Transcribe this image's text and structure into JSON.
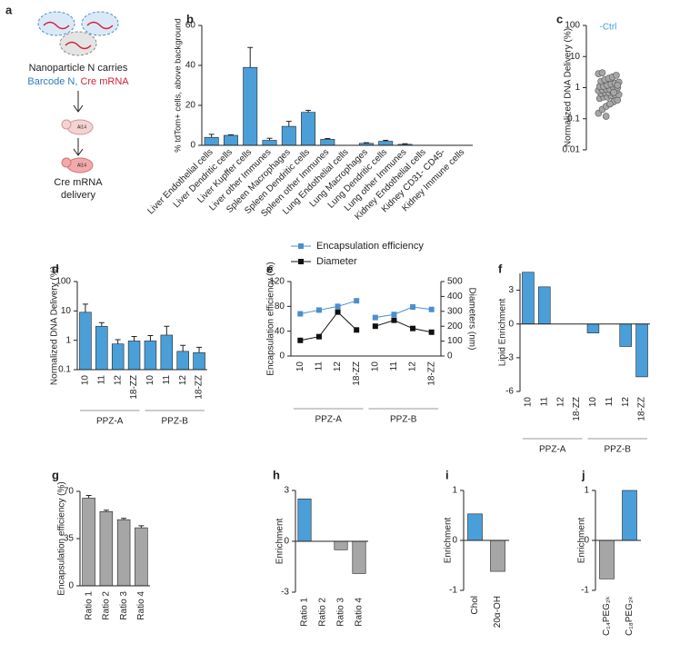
{
  "diagram": {
    "panel": "a",
    "caption": "Nanoparticle N carries",
    "barcode": "Barcode N,",
    "cargo": "Cre mRNA",
    "mouse_label": "Ai14",
    "result_1": "Cre mRNA",
    "result_2": "delivery"
  },
  "chart_data": [
    {
      "type": "bar",
      "panel": "b",
      "ylabel": "% tdTom+ cells, above background",
      "color": "#4a9fd8",
      "categories": [
        "Liver Endothelial cells",
        "Liver Dendritic cells",
        "Liver Kupffer cells",
        "Liver other Immunes",
        "Spleen Macrophages",
        "Spleen Dendritic cells",
        "Spleen other Immunes",
        "Lung Endothelial cells",
        "Lung Macrophages",
        "Lung Dendritic cells",
        "Lung other Immunes",
        "Kidney Endothelial cells",
        "Kidney CD31- CD45-",
        "Kidney Immune cells"
      ],
      "values": [
        4,
        5,
        39,
        2.5,
        9.5,
        16.5,
        3,
        0,
        1,
        2,
        0.5,
        0,
        0,
        0
      ],
      "errors": [
        1.5,
        0.3,
        10,
        1,
        2.5,
        1,
        0.4,
        0,
        0.3,
        0.5,
        0.3,
        0,
        0,
        0
      ],
      "ylim": [
        0,
        60
      ],
      "yticks": [
        0,
        20,
        40,
        60
      ]
    },
    {
      "type": "scatter",
      "panel": "c",
      "ylabel": "Normalized DNA Delivery (%)",
      "annotation": "-Ctrl",
      "annotation_color": "#4a9fd8",
      "color": "#a6a6a6",
      "log": true,
      "values": [
        0.15,
        0.2,
        0.25,
        0.3,
        0.35,
        0.4,
        0.45,
        0.5,
        0.5,
        0.55,
        0.6,
        0.6,
        0.65,
        0.7,
        0.7,
        0.75,
        0.8,
        0.8,
        0.85,
        0.9,
        0.9,
        1,
        1,
        1.1,
        1.1,
        1.2,
        1.3,
        1.4,
        1.5,
        1.6,
        1.8,
        2,
        2.2,
        2.5,
        2.8,
        3,
        0.12,
        0.3,
        0.7,
        1.2
      ],
      "ylim": [
        0.01,
        100
      ],
      "yticks": [
        0.01,
        0.1,
        1,
        10,
        100
      ]
    },
    {
      "type": "bar",
      "panel": "d",
      "ylabel": "Normalized DNA Delivery (%)",
      "color": "#4a9fd8",
      "log": true,
      "categories": [
        "10",
        "11",
        "12",
        "18-ZZ",
        "10",
        "11",
        "12",
        "18-ZZ"
      ],
      "groups": [
        "PPZ-A",
        "PPZ-B"
      ],
      "values": [
        9,
        3,
        0.75,
        0.95,
        0.95,
        1.5,
        0.42,
        0.38
      ],
      "errors": [
        8,
        1,
        0.3,
        0.4,
        0.5,
        1.5,
        0.25,
        0.2
      ],
      "ylim": [
        0.1,
        100
      ],
      "yticks": [
        0.1,
        1,
        10,
        100
      ]
    },
    {
      "type": "line",
      "panel": "e",
      "ylabel": "Encapsulation efficiency (%)",
      "y2label": "Diameters (nm)",
      "categories": [
        "10",
        "11",
        "12",
        "18-ZZ",
        "10",
        "11",
        "12",
        "18-ZZ"
      ],
      "groups": [
        "PPZ-A",
        "PPZ-B"
      ],
      "series": [
        {
          "name": "Encapsulation efficiency",
          "color": "#4a8fd0",
          "values": [
            68,
            74,
            80,
            89,
            62,
            67,
            79,
            75
          ]
        },
        {
          "name": "Diameter",
          "color": "#111111",
          "axis": "y2",
          "values": [
            105,
            130,
            295,
            175,
            200,
            240,
            185,
            160
          ]
        }
      ],
      "ylim": [
        0,
        120
      ],
      "yticks": [
        0,
        40,
        80,
        120
      ],
      "y2lim": [
        0,
        500
      ],
      "y2ticks": [
        0,
        100,
        200,
        300,
        400,
        500
      ]
    },
    {
      "type": "bar",
      "panel": "f",
      "ylabel": "Lipid Enrichment",
      "color": "#4a9fd8",
      "categories": [
        "10",
        "11",
        "12",
        "18-ZZ",
        "10",
        "11",
        "12",
        "18-ZZ"
      ],
      "groups": [
        "PPZ-A",
        "PPZ-B"
      ],
      "values": [
        4.6,
        3.3,
        0,
        0,
        -0.8,
        0,
        -2,
        -4.7
      ],
      "ylim": [
        -6,
        4.5
      ],
      "yticks": [
        -6,
        -3,
        0,
        3
      ]
    },
    {
      "type": "bar",
      "panel": "g",
      "ylabel": "Encapsulation efficiency (%)",
      "color": "#a6a6a6",
      "categories": [
        "Ratio 1",
        "Ratio 2",
        "Ratio 3",
        "Ratio 4"
      ],
      "values": [
        65,
        55,
        49,
        43
      ],
      "errors": [
        2,
        1,
        1,
        1.5
      ],
      "ylim": [
        0,
        70
      ],
      "yticks": [
        0,
        35,
        70
      ]
    },
    {
      "type": "bar",
      "panel": "h",
      "ylabel": "Enrichment",
      "colors": [
        "#4a9fd8",
        "#a6a6a6",
        "#a6a6a6",
        "#a6a6a6"
      ],
      "categories": [
        "Ratio 1",
        "Ratio 2",
        "Ratio 3",
        "Ratio 4"
      ],
      "values": [
        2.5,
        0,
        -0.5,
        -1.9
      ],
      "ylim": [
        -3,
        3
      ],
      "yticks": [
        -3,
        0,
        3
      ]
    },
    {
      "type": "bar",
      "panel": "i",
      "ylabel": "Enrichment",
      "colors": [
        "#4a9fd8",
        "#a6a6a6"
      ],
      "categories": [
        "Chol",
        "20α-OH"
      ],
      "values": [
        0.53,
        -0.62
      ],
      "ylim": [
        -1,
        1
      ],
      "yticks": [
        -1,
        0,
        1
      ]
    },
    {
      "type": "bar",
      "panel": "j",
      "ylabel": "Enrichment",
      "colors": [
        "#a6a6a6",
        "#4a9fd8"
      ],
      "categories": [
        "C₁₄PEG₂ₖ",
        "C₁₈PEG₂ₖ"
      ],
      "values": [
        -0.77,
        1.0
      ],
      "ylim": [
        -1,
        1
      ],
      "yticks": [
        -1,
        0,
        1
      ]
    }
  ]
}
